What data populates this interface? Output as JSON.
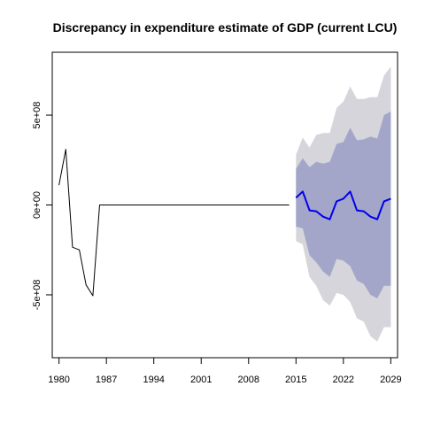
{
  "chart_data": {
    "type": "line",
    "title": "Discrepancy in expenditure estimate of GDP (current LCU)",
    "xlabel": "",
    "ylabel": "",
    "xlim": [
      1979,
      2030
    ],
    "ylim": [
      -850000000,
      850000000
    ],
    "x_ticks": [
      1980,
      1987,
      1994,
      2001,
      2008,
      2015,
      2022,
      2029
    ],
    "x_tick_labels": [
      "1980",
      "1987",
      "1994",
      "2001",
      "2008",
      "2015",
      "2022",
      "2029"
    ],
    "y_ticks": [
      -500000000,
      0,
      500000000
    ],
    "y_tick_labels": [
      "-5e+08",
      "0e+00",
      "5e+08"
    ],
    "grid": false,
    "legend": "none",
    "series": [
      {
        "role": "history",
        "color": "#000000",
        "x": [
          1980,
          1981,
          1982,
          1983,
          1984,
          1985,
          1986,
          1987,
          1988,
          1989,
          1990,
          1991,
          1992,
          1993,
          1994,
          1995,
          1996,
          1997,
          1998,
          1999,
          2000,
          2001,
          2002,
          2003,
          2004,
          2005,
          2006,
          2007,
          2008,
          2009,
          2010,
          2011,
          2012,
          2013,
          2014
        ],
        "values": [
          110000000,
          310000000,
          -235000000,
          -250000000,
          -445000000,
          -505000000,
          0,
          0,
          0,
          0,
          0,
          0,
          0,
          0,
          0,
          0,
          0,
          0,
          0,
          0,
          0,
          0,
          0,
          0,
          0,
          0,
          0,
          0,
          0,
          0,
          0,
          0,
          0,
          0,
          0
        ]
      },
      {
        "role": "forecast",
        "color": "#0000ee",
        "x": [
          2015,
          2016,
          2017,
          2018,
          2019,
          2020,
          2021,
          2022,
          2023,
          2024,
          2025,
          2026,
          2027,
          2028,
          2029
        ],
        "values": [
          40000000,
          75000000,
          -30000000,
          -35000000,
          -65000000,
          -80000000,
          20000000,
          35000000,
          75000000,
          -30000000,
          -35000000,
          -65000000,
          -80000000,
          20000000,
          35000000
        ]
      }
    ],
    "bands": [
      {
        "level": "95%",
        "color": "#d5d5db",
        "x": [
          2015,
          2016,
          2017,
          2018,
          2019,
          2020,
          2021,
          2022,
          2023,
          2024,
          2025,
          2026,
          2027,
          2028,
          2029
        ],
        "upper": [
          280000000,
          375000000,
          320000000,
          390000000,
          400000000,
          400000000,
          540000000,
          575000000,
          660000000,
          590000000,
          590000000,
          600000000,
          600000000,
          720000000,
          770000000
        ],
        "lower": [
          -200000000,
          -220000000,
          -400000000,
          -450000000,
          -530000000,
          -560000000,
          -490000000,
          -500000000,
          -540000000,
          -630000000,
          -650000000,
          -730000000,
          -760000000,
          -680000000,
          -680000000
        ]
      },
      {
        "level": "80%",
        "color": "#a3a6c8",
        "x": [
          2015,
          2016,
          2017,
          2018,
          2019,
          2020,
          2021,
          2022,
          2023,
          2024,
          2025,
          2026,
          2027,
          2028,
          2029
        ],
        "upper": [
          200000000,
          260000000,
          210000000,
          240000000,
          230000000,
          240000000,
          340000000,
          350000000,
          430000000,
          360000000,
          365000000,
          380000000,
          370000000,
          500000000,
          520000000
        ],
        "lower": [
          -120000000,
          -130000000,
          -280000000,
          -320000000,
          -370000000,
          -400000000,
          -300000000,
          -310000000,
          -340000000,
          -420000000,
          -440000000,
          -500000000,
          -520000000,
          -450000000,
          -450000000
        ]
      }
    ]
  }
}
